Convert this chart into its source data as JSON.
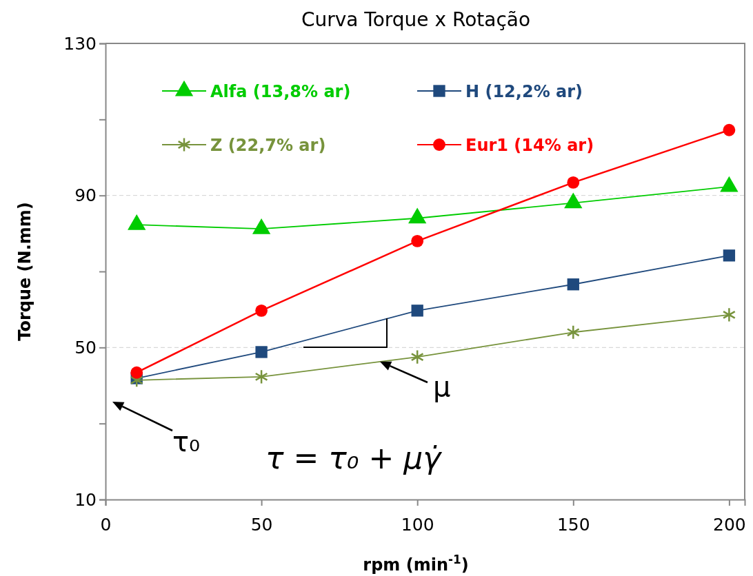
{
  "chart_data": {
    "type": "line",
    "title": "Curva Torque x Rotação",
    "xlabel": "rpm (min$^{-1}$)",
    "ylabel": "Torque (N.mm)",
    "x": [
      10,
      50,
      100,
      150,
      200
    ],
    "series": [
      {
        "name": "Alfa (13,8% ar)",
        "color": "#00cc00",
        "marker": "triangle",
        "values": [
          82.3,
          81.2,
          84.0,
          88.0,
          92.3
        ]
      },
      {
        "name": "H (12,2% ar)",
        "color": "#1f497d",
        "marker": "square",
        "values": [
          41.9,
          48.8,
          59.7,
          66.6,
          74.2
        ]
      },
      {
        "name": "Z (22,7% ar)",
        "color": "#77933c",
        "marker": "cross",
        "values": [
          41.4,
          42.3,
          47.5,
          54.0,
          58.6
        ]
      },
      {
        "name": "Eur1 (14% ar)",
        "color": "#ff0000",
        "marker": "circle",
        "values": [
          43.4,
          59.7,
          78.0,
          93.4,
          107.2
        ]
      }
    ],
    "xlim": [
      0,
      205
    ],
    "xticks": [
      0,
      50,
      100,
      150,
      200
    ],
    "ylim": [
      10,
      130
    ],
    "yticks": [
      10,
      {
        "value": 30,
        "label": null
      },
      50,
      {
        "value": 70,
        "label": null
      },
      90,
      {
        "value": 110,
        "label": null
      },
      130
    ],
    "grid": "y",
    "legend": "top left",
    "annotations": [
      "τ₀",
      {
        "text": "μ",
        "x": 88,
        "y": 46.3
      },
      "τ = τ₀ + μγ̇"
    ]
  }
}
